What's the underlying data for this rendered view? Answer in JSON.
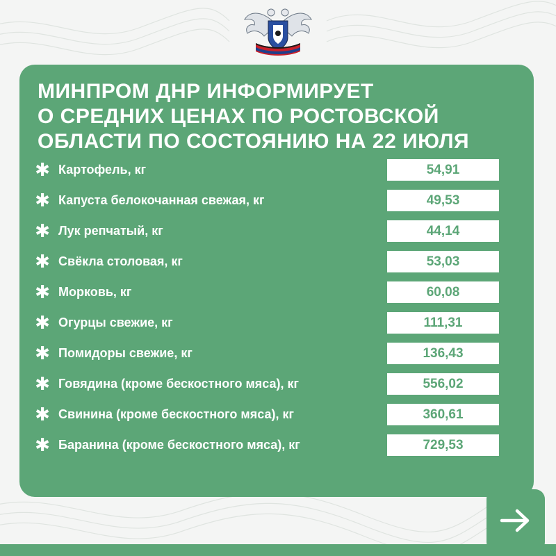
{
  "header": {
    "title_lines": [
      "МИНПРОМ ДНР ИНФОРМИРУЕТ",
      "О СРЕДНИХ ЦЕНАХ ПО РОСТОВСКОЙ",
      "ОБЛАСТИ ПО СОСТОЯНИЮ НА 22 ИЮЛЯ"
    ]
  },
  "bullet_glyph": "✱",
  "prices": [
    {
      "name": "Картофель, кг",
      "value": "54,91"
    },
    {
      "name": "Капуста белокочанная свежая, кг",
      "value": "49,53"
    },
    {
      "name": "Лук репчатый, кг",
      "value": "44,14"
    },
    {
      "name": "Свёкла столовая, кг",
      "value": "53,03"
    },
    {
      "name": "Морковь, кг",
      "value": "60,08"
    },
    {
      "name": "Огурцы свежие, кг",
      "value": "111,31"
    },
    {
      "name": "Помидоры свежие, кг",
      "value": "136,43"
    },
    {
      "name": "Говядина (кроме бескостного мяса), кг",
      "value": "556,02"
    },
    {
      "name": "Свинина (кроме бескостного мяса), кг",
      "value": "360,61"
    },
    {
      "name": "Баранина (кроме бескостного мяса), кг",
      "value": "729,53"
    }
  ],
  "icons": {
    "emblem": "coat-of-arms-icon",
    "next": "arrow-right-icon"
  },
  "colors": {
    "accent": "#5ca677",
    "background": "#f4f5f4",
    "text_light": "#ffffff"
  }
}
